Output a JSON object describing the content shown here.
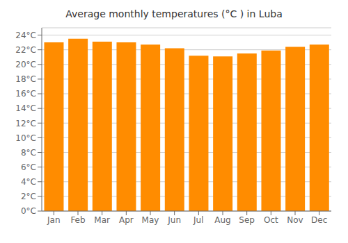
{
  "chart_data": {
    "type": "bar",
    "title": "Average monthly temperatures (°C ) in Luba",
    "categories": [
      "Jan",
      "Feb",
      "Mar",
      "Apr",
      "May",
      "Jun",
      "Jul",
      "Aug",
      "Sep",
      "Oct",
      "Nov",
      "Dec"
    ],
    "values": [
      23.0,
      23.5,
      23.1,
      23.0,
      22.7,
      22.2,
      21.2,
      21.1,
      21.5,
      21.9,
      22.4,
      22.7
    ],
    "color": "#FF8C00",
    "ylim": [
      0,
      25
    ],
    "yticks": [
      {
        "value": 0,
        "label": "0°C"
      },
      {
        "value": 2,
        "label": "2°C"
      },
      {
        "value": 4,
        "label": "4°C"
      },
      {
        "value": 6,
        "label": "6°C"
      },
      {
        "value": 8,
        "label": "8°C"
      },
      {
        "value": 10,
        "label": "10°C"
      },
      {
        "value": 12,
        "label": "12°C"
      },
      {
        "value": 14,
        "label": "14°C"
      },
      {
        "value": 16,
        "label": "16°C"
      },
      {
        "value": 18,
        "label": "18°C"
      },
      {
        "value": 20,
        "label": "20°C"
      },
      {
        "value": 22,
        "label": "22°C"
      },
      {
        "value": 24,
        "label": "24°C"
      }
    ],
    "grid": true
  }
}
